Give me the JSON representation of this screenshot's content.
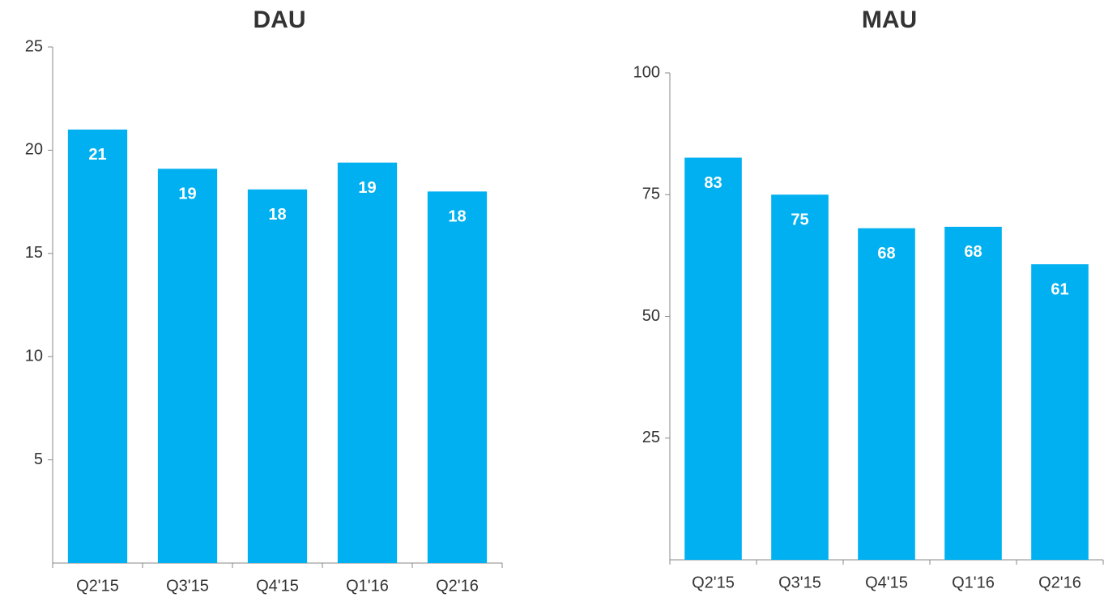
{
  "chart_data": [
    {
      "type": "bar",
      "title": "DAU",
      "categories": [
        "Q2'15",
        "Q3'15",
        "Q4'15",
        "Q1'16",
        "Q2'16"
      ],
      "values": [
        21.0,
        19.1,
        18.1,
        19.4,
        18.0
      ],
      "value_labels": [
        "21",
        "19",
        "18",
        "19",
        "18"
      ],
      "color": "#00b0f0",
      "ylim": [
        0,
        25
      ],
      "yticks": [
        5,
        10,
        15,
        20,
        25
      ]
    },
    {
      "type": "bar",
      "title": "MAU",
      "categories": [
        "Q2'15",
        "Q3'15",
        "Q4'15",
        "Q1'16",
        "Q2'16"
      ],
      "values": [
        82.6,
        75.0,
        68.1,
        68.4,
        60.7
      ],
      "value_labels": [
        "83",
        "75",
        "68",
        "68",
        "61"
      ],
      "color": "#00b0f0",
      "ylim": [
        0,
        100
      ],
      "yticks": [
        25,
        50,
        75,
        100
      ]
    }
  ]
}
